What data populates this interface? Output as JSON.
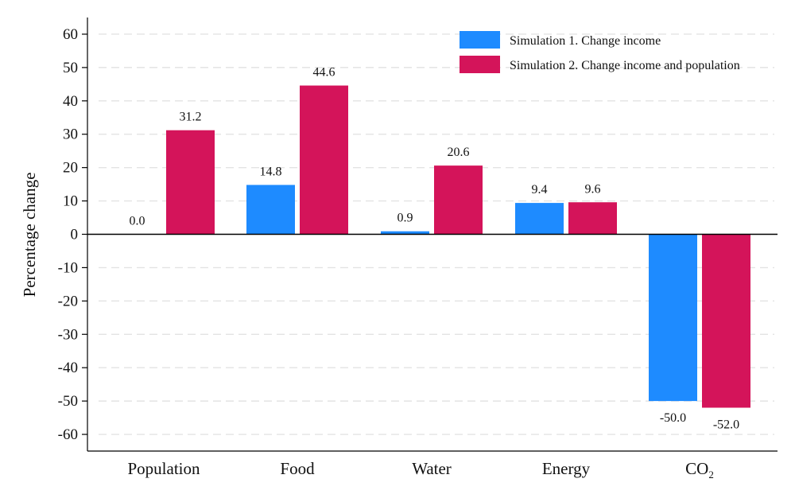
{
  "chart_data": {
    "type": "bar",
    "title": "",
    "xlabel": "",
    "ylabel": "Percentage change",
    "ylim": [
      -65,
      65
    ],
    "yticks": [
      60,
      50,
      40,
      30,
      20,
      10,
      0,
      -10,
      -20,
      -30,
      -40,
      -50,
      -60
    ],
    "categories": [
      {
        "main": "Population",
        "sub": ""
      },
      {
        "main": "Food",
        "sub": ""
      },
      {
        "main": "Water",
        "sub": ""
      },
      {
        "main": "Energy",
        "sub": ""
      },
      {
        "main": "CO",
        "sub": "2"
      }
    ],
    "series": [
      {
        "name": "Simulation 1. Change income",
        "color": "#1e8bff",
        "values": [
          0.0,
          14.8,
          0.9,
          9.4,
          -50.0
        ],
        "labels": [
          "0.0",
          "14.8",
          "0.9",
          "9.4",
          "-50.0"
        ]
      },
      {
        "name": "Simulation 2. Change income and population",
        "color": "#d4145a",
        "values": [
          31.2,
          44.6,
          20.6,
          9.6,
          -52.0
        ],
        "labels": [
          "31.2",
          "44.6",
          "20.6",
          "9.6",
          "-52.0"
        ]
      }
    ],
    "grid": true,
    "legend_position": "top-right"
  }
}
